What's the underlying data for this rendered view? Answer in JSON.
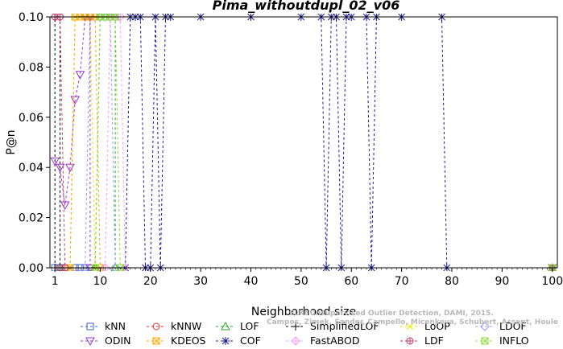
{
  "chart_data": {
    "type": "line",
    "title": "Pima_withoutdupl_02_v06",
    "xlabel": "Neighborhood size",
    "ylabel": "P@n",
    "xlim": [
      0,
      101
    ],
    "ylim": [
      0,
      0.1
    ],
    "xticks": [
      1,
      10,
      20,
      30,
      40,
      50,
      60,
      70,
      80,
      90,
      100
    ],
    "yticks": [
      0.0,
      0.02,
      0.04,
      0.06,
      0.08,
      0.1
    ],
    "ytick_labels": [
      "0.00",
      "0.02",
      "0.04",
      "0.06",
      "0.08",
      "0.10"
    ],
    "grid": false,
    "legend_position": "bottom",
    "series": [
      {
        "name": "kNN",
        "color": "#3a5fcd",
        "marker": "square",
        "points": [
          [
            1,
            0
          ],
          [
            2,
            0
          ],
          [
            3,
            0
          ],
          [
            4,
            0
          ],
          [
            5,
            0
          ],
          [
            6,
            0
          ],
          [
            7,
            0
          ],
          [
            8,
            0
          ],
          [
            9,
            0
          ],
          [
            10,
            0
          ],
          [
            100,
            0
          ]
        ]
      },
      {
        "name": "kNNW",
        "color": "#e8302a",
        "marker": "circle",
        "points": [
          [
            1,
            0.1
          ],
          [
            2,
            0.1
          ],
          [
            2,
            0
          ],
          [
            3,
            0
          ],
          [
            100,
            0
          ]
        ]
      },
      {
        "name": "LOF",
        "color": "#22aa22",
        "marker": "triangle",
        "points": [
          [
            9,
            0
          ],
          [
            10,
            0.1
          ],
          [
            11,
            0.1
          ],
          [
            12,
            0.1
          ],
          [
            13,
            0.1
          ],
          [
            13,
            0
          ],
          [
            100,
            0
          ]
        ]
      },
      {
        "name": "SimplifiedLOF",
        "color": "#000000",
        "marker": "plus",
        "points": [
          [
            1,
            0
          ],
          [
            1,
            0.1
          ],
          [
            2,
            0.1
          ],
          [
            2,
            0
          ],
          [
            100,
            0
          ]
        ]
      },
      {
        "name": "LoOP",
        "color": "#e8e800",
        "marker": "cross",
        "points": [
          [
            4,
            0
          ],
          [
            5,
            0.1
          ],
          [
            6,
            0.1
          ],
          [
            7,
            0.1
          ],
          [
            8,
            0.1
          ],
          [
            9,
            0
          ],
          [
            100,
            0
          ]
        ]
      },
      {
        "name": "LDOF",
        "color": "#9999ff",
        "marker": "diamond",
        "points": [
          [
            7,
            0
          ],
          [
            8,
            0.1
          ],
          [
            9,
            0.1
          ],
          [
            10,
            0.1
          ],
          [
            11,
            0.1
          ],
          [
            12,
            0.1
          ],
          [
            13,
            0
          ],
          [
            100,
            0
          ]
        ]
      },
      {
        "name": "ODIN",
        "color": "#9933cc",
        "marker": "invtriangle",
        "points": [
          [
            1,
            0.0425
          ],
          [
            2,
            0.04
          ],
          [
            3,
            0.025
          ],
          [
            4,
            0.04
          ],
          [
            5,
            0.067
          ],
          [
            6,
            0.077
          ],
          [
            7,
            0.1
          ],
          [
            8,
            0.1
          ],
          [
            8,
            0
          ],
          [
            100,
            0
          ]
        ]
      },
      {
        "name": "KDEOS",
        "color": "#ffaa00",
        "marker": "squarex",
        "points": [
          [
            4,
            0
          ],
          [
            5,
            0.1
          ],
          [
            6,
            0.1
          ],
          [
            7,
            0.1
          ],
          [
            8,
            0.1
          ],
          [
            9,
            0.1
          ],
          [
            10,
            0
          ],
          [
            100,
            0
          ]
        ]
      },
      {
        "name": "COF",
        "color": "#1a1a8c",
        "marker": "asterisk",
        "points": [
          [
            15,
            0
          ],
          [
            16,
            0.1
          ],
          [
            17,
            0.1
          ],
          [
            18,
            0.1
          ],
          [
            19,
            0
          ],
          [
            20,
            0
          ],
          [
            21,
            0.1
          ],
          [
            22,
            0
          ],
          [
            23,
            0.1
          ],
          [
            24,
            0.1
          ],
          [
            30,
            0.1
          ],
          [
            40,
            0.1
          ],
          [
            50,
            0.1
          ],
          [
            54,
            0.1
          ],
          [
            55,
            0
          ],
          [
            56,
            0.1
          ],
          [
            57,
            0.1
          ],
          [
            58,
            0
          ],
          [
            59,
            0.1
          ],
          [
            60,
            0.1
          ],
          [
            63,
            0.1
          ],
          [
            64,
            0
          ],
          [
            65,
            0.1
          ],
          [
            70,
            0.1
          ],
          [
            78,
            0.1
          ],
          [
            79,
            0
          ],
          [
            100,
            0
          ]
        ]
      },
      {
        "name": "FastABOD",
        "color": "#ff99ff",
        "marker": "diamondplus",
        "points": [
          [
            11,
            0
          ],
          [
            12,
            0.1
          ],
          [
            13,
            0.1
          ],
          [
            14,
            0.1
          ],
          [
            15,
            0
          ],
          [
            100,
            0
          ]
        ]
      },
      {
        "name": "LDF",
        "color": "#cc3366",
        "marker": "circleplus",
        "points": [
          [
            1,
            0.1
          ],
          [
            2,
            0.1
          ],
          [
            3,
            0
          ],
          [
            100,
            0
          ]
        ]
      },
      {
        "name": "INFLO",
        "color": "#88dd33",
        "marker": "squarex",
        "points": [
          [
            9,
            0
          ],
          [
            10,
            0.1
          ],
          [
            11,
            0.1
          ],
          [
            12,
            0.1
          ],
          [
            13,
            0.1
          ],
          [
            14,
            0
          ],
          [
            100,
            0
          ]
        ]
      }
    ],
    "watermark": {
      "line1": "ELKI Unsupervised Outlier Detection, DAMI, 2015.",
      "line2": "Campos, Zimek, Sander, Campello, Micenkova, Schubert, Assent, Houle"
    }
  }
}
